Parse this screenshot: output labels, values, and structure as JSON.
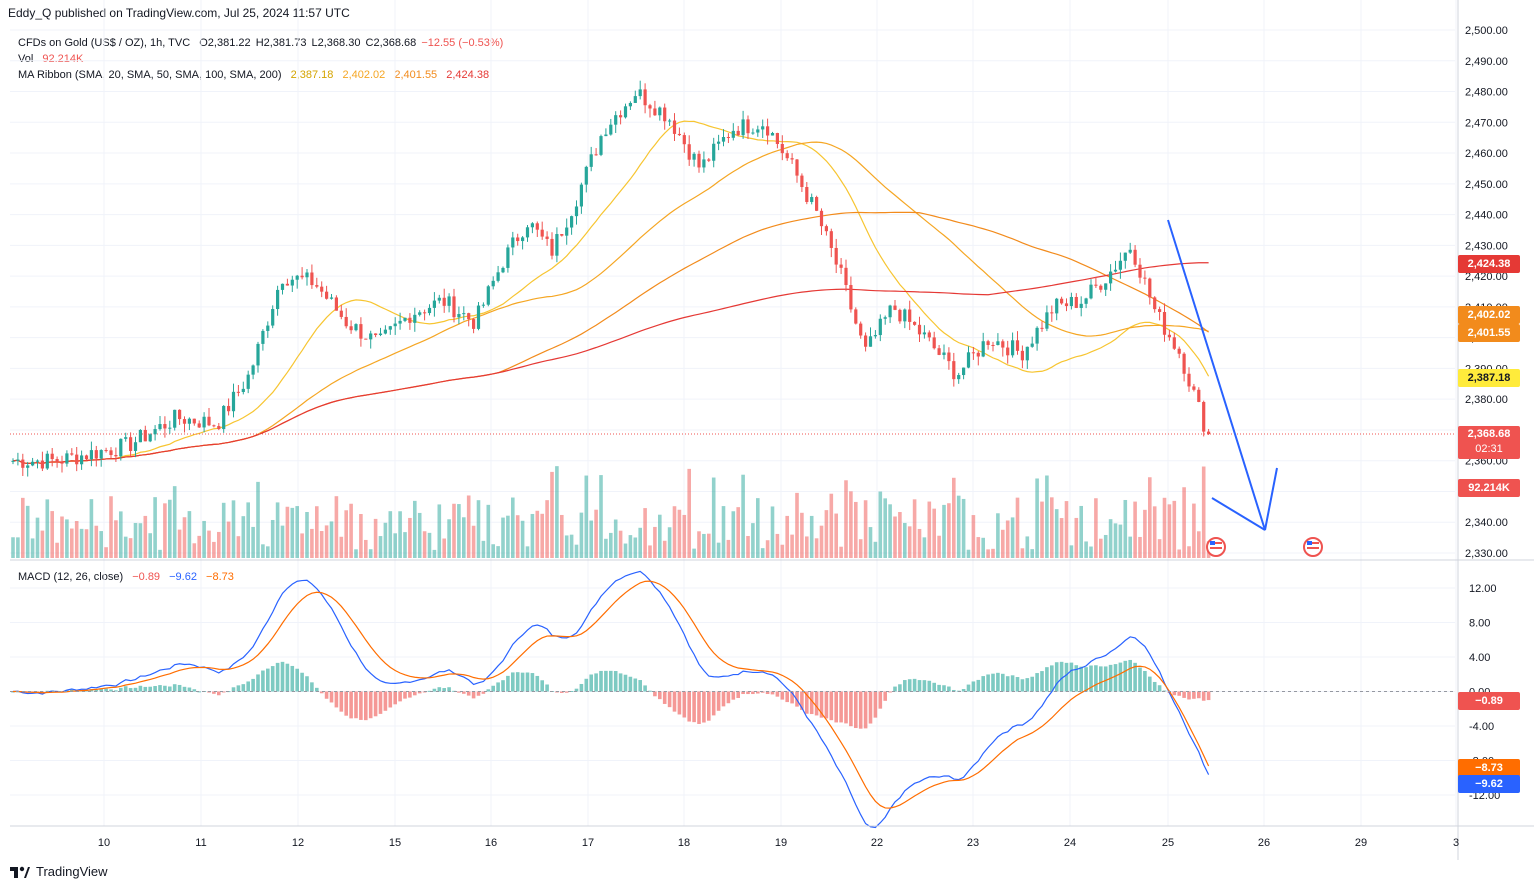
{
  "header": {
    "published_by": "Eddy_Q published on TradingView.com, Jul 25, 2024 11:57 UTC"
  },
  "legend": {
    "symbol": "CFDs on Gold (US$ / OZ), 1h, TVC",
    "ohlc": {
      "open": "O2,381.22",
      "high": "H2,381.73",
      "low": "L2,368.30",
      "close": "C2,368.68",
      "change": "−12.55 (−0.53%)"
    },
    "volume_label": "Vol",
    "volume_value": "92.214K",
    "ma_label": "MA Ribbon (SMA, 20, SMA, 50, SMA, 100, SMA, 200)",
    "ma_values": [
      "2,387.18",
      "2,402.02",
      "2,401.55",
      "2,424.38"
    ],
    "macd_label": "MACD (12, 26, close)",
    "macd_values": [
      "−0.89",
      "−9.62",
      "−8.73"
    ]
  },
  "badges": {
    "ma200": "2,424.38",
    "ma50": "2,402.02",
    "ma100": "2,401.55",
    "ma20": "2,387.18",
    "price": "2,368.68",
    "countdown": "02:31",
    "volume": "92.214K",
    "hist": "−0.89",
    "signal": "−8.73",
    "macd": "−9.62"
  },
  "colors": {
    "up": "#26a69a",
    "down": "#ef5350",
    "ma20": "#f7c531",
    "ma50": "#f5a623",
    "ma100": "#f28b1c",
    "ma200": "#e53935",
    "macd": "#2962ff",
    "signal": "#ff6d00",
    "projection": "#2962ff"
  },
  "chart_data": {
    "type": "candlestick",
    "title": "CFDs on Gold (US$ / OZ), 1h, TVC",
    "price_axis": {
      "ticks": [
        "2,500.00",
        "2,490.00",
        "2,480.00",
        "2,470.00",
        "2,460.00",
        "2,450.00",
        "2,440.00",
        "2,430.00",
        "2,420.00",
        "2,410.00",
        "2,400.00",
        "2,390.00",
        "2,380.00",
        "2,370.00",
        "2,360.00",
        "2,350.00",
        "2,340.00",
        "2,330.00"
      ],
      "range": [
        2330,
        2500
      ]
    },
    "x_axis": {
      "ticks": [
        "10",
        "11",
        "12",
        "15",
        "16",
        "17",
        "18",
        "19",
        "22",
        "23",
        "24",
        "25",
        "26",
        "29",
        "3"
      ]
    },
    "price_path": [
      [
        "09",
        2360
      ],
      [
        "10",
        2365
      ],
      [
        "10",
        2374
      ],
      [
        "11",
        2372
      ],
      [
        "11",
        2388
      ],
      [
        "11",
        2420
      ],
      [
        "12",
        2418
      ],
      [
        "12",
        2405
      ],
      [
        "12",
        2398
      ],
      [
        "15",
        2408
      ],
      [
        "15",
        2412
      ],
      [
        "15",
        2405
      ],
      [
        "16",
        2425
      ],
      [
        "16",
        2438
      ],
      [
        "16",
        2428
      ],
      [
        "16",
        2445
      ],
      [
        "17",
        2468
      ],
      [
        "17",
        2480
      ],
      [
        "17",
        2472
      ],
      [
        "18",
        2455
      ],
      [
        "18",
        2468
      ],
      [
        "18",
        2470
      ],
      [
        "19",
        2455
      ],
      [
        "19",
        2440
      ],
      [
        "19",
        2420
      ],
      [
        "19",
        2395
      ],
      [
        "22",
        2410
      ],
      [
        "22",
        2400
      ],
      [
        "22",
        2388
      ],
      [
        "23",
        2400
      ],
      [
        "23",
        2395
      ],
      [
        "23",
        2410
      ],
      [
        "24",
        2412
      ],
      [
        "24",
        2420
      ],
      [
        "24",
        2430
      ],
      [
        "24",
        2408
      ],
      [
        "25",
        2395
      ],
      [
        "25",
        2372
      ],
      [
        "25",
        2380
      ],
      [
        "25",
        2368.68
      ]
    ],
    "moving_averages": [
      {
        "name": "SMA 20",
        "last": 2387.18
      },
      {
        "name": "SMA 50",
        "last": 2402.02
      },
      {
        "name": "SMA 100",
        "last": 2401.55
      },
      {
        "name": "SMA 200",
        "last": 2424.38
      }
    ],
    "volume_last": "92.214K",
    "projection": [
      [
        "25",
        2357
      ],
      [
        "26",
        2338
      ],
      [
        "26",
        2359
      ]
    ],
    "macd": {
      "axis_ticks": [
        "12.00",
        "8.00",
        "4.00",
        "0.00",
        "-4.00",
        "-8.00",
        "-12.00"
      ],
      "range": [
        -12,
        12
      ],
      "macd_last": -9.62,
      "signal_last": -8.73,
      "hist_last": -0.89
    }
  },
  "footer": {
    "brand": "TradingView"
  }
}
